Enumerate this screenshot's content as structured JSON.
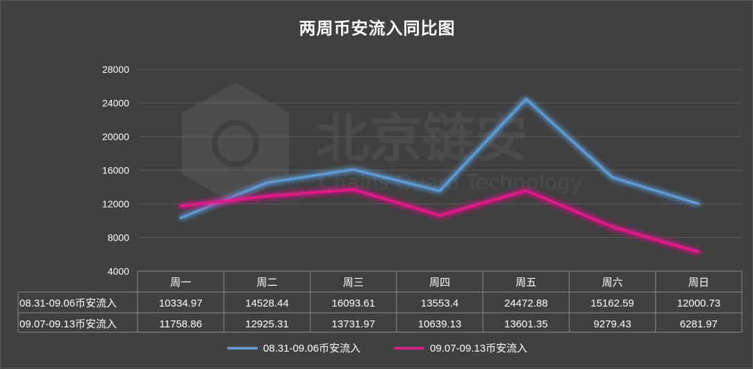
{
  "chart_data": {
    "type": "line",
    "title": "两周币安流入同比图",
    "categories": [
      "周一",
      "周二",
      "周三",
      "周四",
      "周五",
      "周六",
      "周日"
    ],
    "series": [
      {
        "name": "08.31-09.06币安流入",
        "color": "#5b9bd5",
        "values": [
          10334.97,
          14528.44,
          16093.61,
          13553.4,
          24472.88,
          15162.59,
          12000.73
        ],
        "display": [
          "10334.97",
          "14528.44",
          "16093.61",
          "13553.4",
          "24472.88",
          "15162.59",
          "12000.73"
        ]
      },
      {
        "name": "09.07-09.13币安流入",
        "color": "#e8158c",
        "values": [
          11758.86,
          12925.31,
          13731.97,
          10639.13,
          13601.35,
          9279.43,
          6281.97
        ],
        "display": [
          "11758.86",
          "12925.31",
          "13731.97",
          "10639.13",
          "13601.35",
          "9279.43",
          "6281.97"
        ]
      }
    ],
    "yticks": [
      4000,
      8000,
      12000,
      16000,
      20000,
      24000,
      28000
    ],
    "ylim": [
      4000,
      28000
    ],
    "grid": true,
    "legend": "bottom",
    "data_table": true
  },
  "watermark": {
    "text": "北京链安",
    "subtext": "Chains Guard Technology",
    "icon": "chains-guard-logo"
  }
}
